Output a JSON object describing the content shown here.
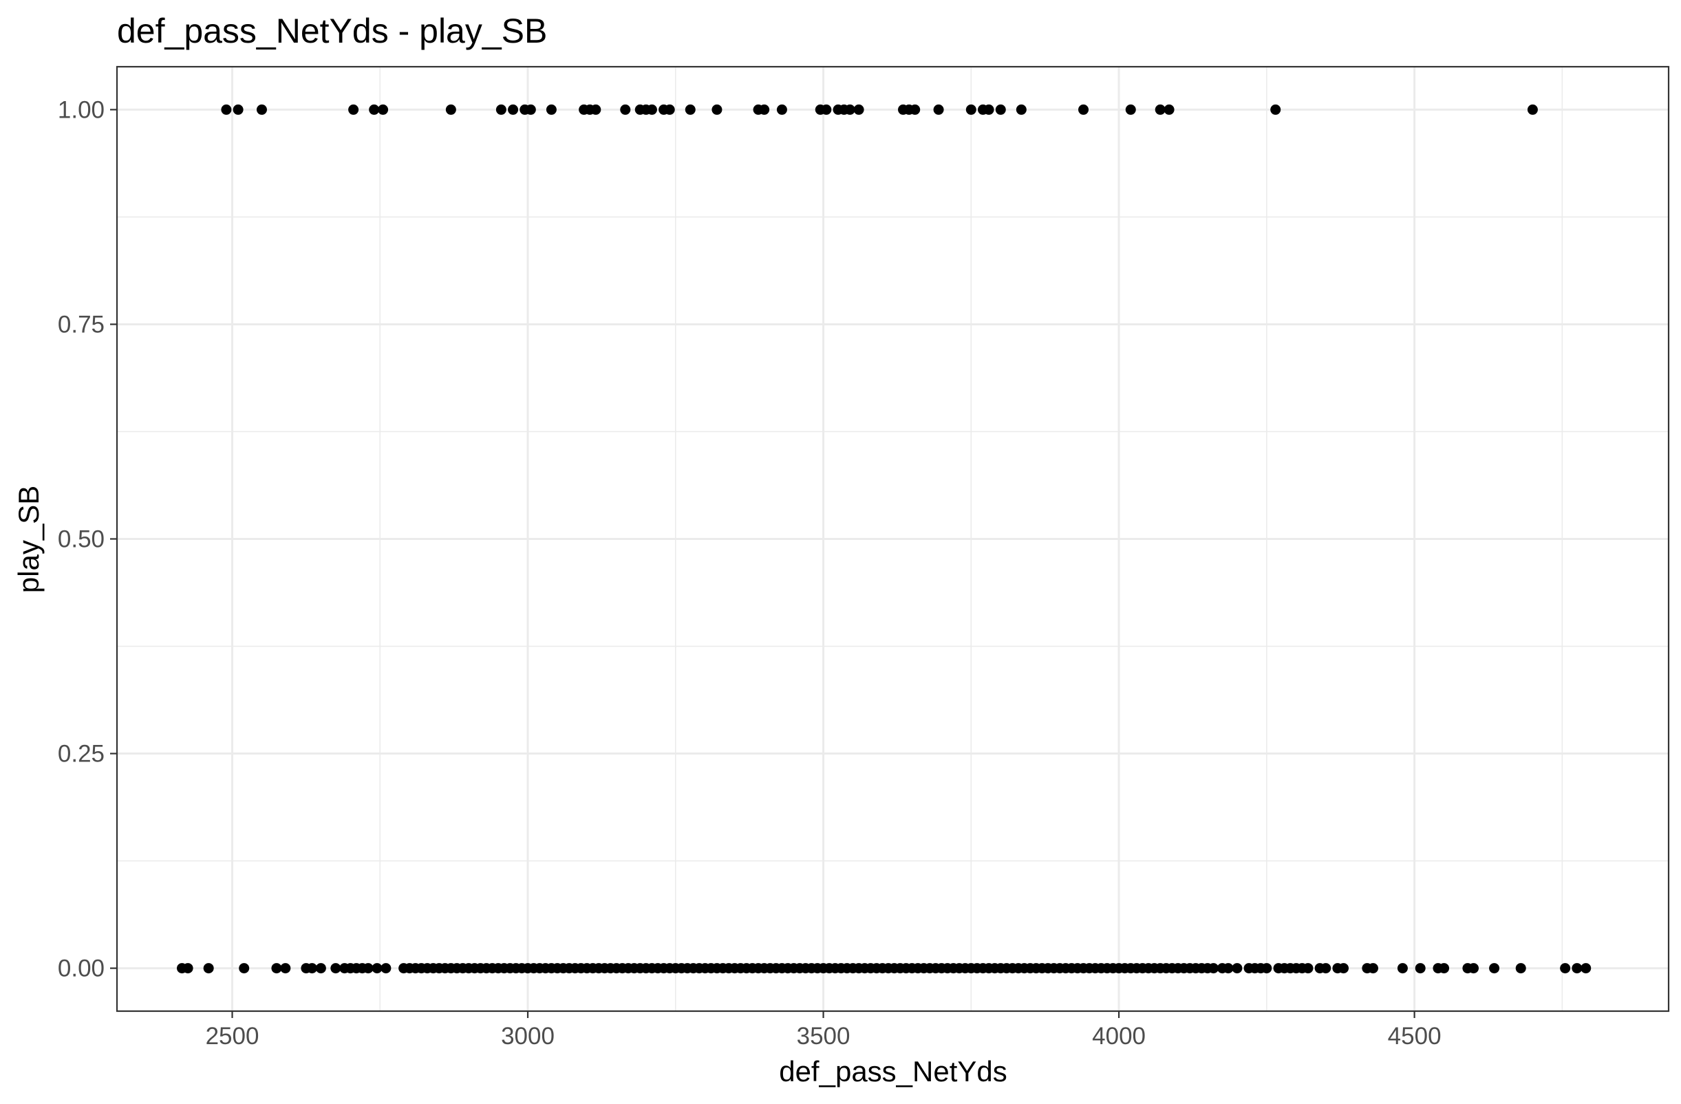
{
  "chart_data": {
    "type": "scatter",
    "title": "def_pass_NetYds - play_SB",
    "xlabel": "def_pass_NetYds",
    "ylabel": "play_SB",
    "xlim": [
      2305,
      4930
    ],
    "ylim": [
      -0.05,
      1.05
    ],
    "x_ticks": [
      2500,
      3000,
      3500,
      4000,
      4500
    ],
    "x_tick_labels": [
      "2500",
      "3000",
      "3500",
      "4000",
      "4500"
    ],
    "y_ticks": [
      0,
      0.25,
      0.5,
      0.75,
      1.0
    ],
    "y_tick_labels": [
      "0.00",
      "0.25",
      "0.50",
      "0.75",
      "1.00"
    ],
    "grid": true,
    "legend": "none",
    "colors": {
      "points": "#000000",
      "grid": "#ebebeb",
      "panel_border": "#333333",
      "tick_label": "#4d4d4d"
    },
    "series": [
      {
        "y": 1,
        "x": [
          2490,
          2510,
          2550,
          2705,
          2740,
          2755,
          2870,
          2955,
          2975,
          2995,
          3005,
          3040,
          3095,
          3105,
          3115,
          3165,
          3190,
          3200,
          3210,
          3230,
          3240,
          3275,
          3320,
          3390,
          3400,
          3430,
          3495,
          3505,
          3525,
          3535,
          3545,
          3560,
          3635,
          3645,
          3655,
          3695,
          3750,
          3770,
          3780,
          3800,
          3835,
          3940,
          4020,
          4070,
          4085,
          4265,
          4700
        ]
      },
      {
        "y": 0,
        "x": [
          2415,
          2425,
          2460,
          2520,
          2575,
          2590,
          2625,
          2635,
          2650,
          2675,
          2690,
          2700,
          2710,
          2720,
          2730,
          2745,
          2760,
          2790,
          2800,
          2810,
          2820,
          2830,
          2840,
          2850,
          2860,
          2870,
          2880,
          2890,
          2900,
          2910,
          2920,
          2930,
          2940,
          2950,
          2960,
          2970,
          2980,
          2990,
          3000,
          3010,
          3020,
          3030,
          3040,
          3050,
          3060,
          3070,
          3080,
          3090,
          3100,
          3110,
          3120,
          3130,
          3140,
          3150,
          3160,
          3170,
          3180,
          3190,
          3200,
          3210,
          3220,
          3230,
          3240,
          3250,
          3260,
          3270,
          3280,
          3290,
          3300,
          3310,
          3320,
          3330,
          3340,
          3350,
          3360,
          3370,
          3380,
          3390,
          3400,
          3410,
          3420,
          3430,
          3440,
          3450,
          3460,
          3470,
          3480,
          3490,
          3500,
          3510,
          3520,
          3530,
          3540,
          3550,
          3560,
          3570,
          3580,
          3590,
          3600,
          3610,
          3620,
          3630,
          3640,
          3650,
          3660,
          3670,
          3680,
          3690,
          3700,
          3710,
          3720,
          3730,
          3740,
          3750,
          3760,
          3770,
          3780,
          3790,
          3800,
          3810,
          3820,
          3830,
          3840,
          3850,
          3860,
          3870,
          3880,
          3890,
          3900,
          3910,
          3920,
          3930,
          3940,
          3950,
          3960,
          3970,
          3980,
          3990,
          4000,
          4010,
          4020,
          4030,
          4040,
          4050,
          4060,
          4070,
          4080,
          4090,
          4100,
          4110,
          4120,
          4130,
          4140,
          4150,
          4160,
          4175,
          4185,
          4200,
          4220,
          4230,
          4240,
          4250,
          4270,
          4280,
          4290,
          4300,
          4310,
          4320,
          4340,
          4350,
          4370,
          4380,
          4420,
          4430,
          4480,
          4510,
          4540,
          4550,
          4590,
          4600,
          4635,
          4680,
          4755,
          4775,
          4790
        ]
      }
    ]
  }
}
